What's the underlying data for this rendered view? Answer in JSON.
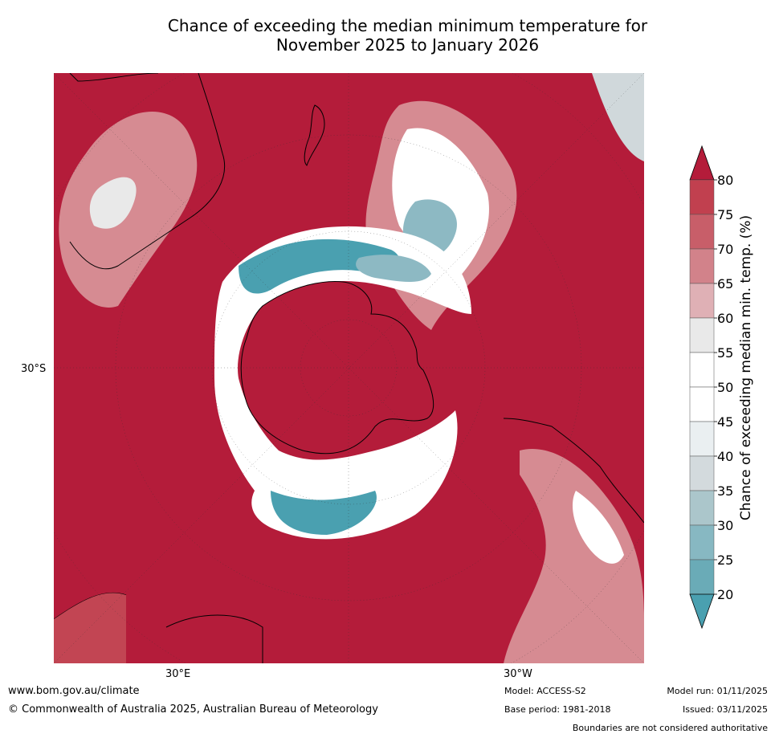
{
  "title": {
    "line1": "Chance of exceeding the median minimum temperature for",
    "line2": "November 2025 to January 2026"
  },
  "map": {
    "projection": "south-polar-stereographic",
    "colors": {
      "ocean_high": "#b41c3a",
      "high_75": "#c24553",
      "high_70": "#cc6a73",
      "high_65": "#d68b92",
      "high_60": "#e3b9bd",
      "neutral_55": "#e9e9e9",
      "neutral": "#ffffff",
      "low_40": "#e6ecee",
      "low_35": "#d0d8db",
      "low_30": "#abc5cb",
      "low_25": "#8db9c3",
      "low_20": "#4aa0b0",
      "coast": "#000000",
      "border": "#808080"
    },
    "lat_labels": [
      "30°S"
    ],
    "lon_labels": [
      "30°E",
      "30°W"
    ]
  },
  "colorbar": {
    "label": "Chance of exceeding median min. temp. (%)",
    "ticks": [
      "80",
      "75",
      "70",
      "65",
      "60",
      "55",
      "50",
      "45",
      "40",
      "35",
      "30",
      "25",
      "20"
    ],
    "segment_colors": [
      "#c1404f",
      "#c85e69",
      "#d2828a",
      "#dfb0b5",
      "#e9e9e9",
      "#ffffff",
      "#ffffff",
      "#eaeff1",
      "#d3dadd",
      "#abc6cb",
      "#87b8c2",
      "#6aabb7"
    ],
    "top_extend_color": "#b41c3a",
    "bottom_extend_color": "#4aa0b0"
  },
  "footer": {
    "website": "www.bom.gov.au/climate",
    "copyright": "© Commonwealth of Australia 2025, Australian Bureau of Meteorology",
    "model": "Model: ACCESS-S2",
    "base_period": "Base period: 1981-2018",
    "model_run": "Model run: 01/11/2025",
    "issued": "Issued: 03/11/2025",
    "disclaimer": "Boundaries are not considered authoritative"
  }
}
